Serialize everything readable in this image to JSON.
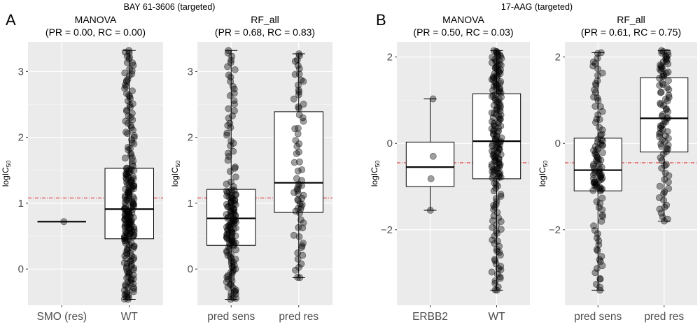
{
  "figure": {
    "groups": [
      {
        "letter": "A",
        "drug_title": "BAY 61-3606 (targeted)"
      },
      {
        "letter": "B",
        "drug_title": "17-AAG (targeted)"
      }
    ]
  },
  "chart_data": [
    {
      "type": "box",
      "panel": "A-left",
      "title": "MANOVA",
      "subtitle": "(PR = 0.00, RC = 0.00)",
      "ylabel": "logIC",
      "ylabel_subscript": "50",
      "categories": [
        "SMO (res)",
        "WT"
      ],
      "ylim": [
        -0.55,
        3.45
      ],
      "yticks": [
        0,
        1,
        2,
        3
      ],
      "threshold": 1.08,
      "boxes": [
        {
          "q1": 0.72,
          "median": 0.72,
          "q3": 0.72,
          "whisker_low": 0.72,
          "whisker_high": 0.72,
          "n": 1,
          "points": [
            0.72
          ]
        },
        {
          "q1": 0.46,
          "median": 0.91,
          "q3": 1.53,
          "whisker_low": -0.46,
          "whisker_high": 3.32,
          "n": 230
        }
      ]
    },
    {
      "type": "box",
      "panel": "A-right",
      "title": "RF_all",
      "subtitle": "(PR = 0.68, RC = 0.83)",
      "ylabel": "logIC",
      "ylabel_subscript": "50",
      "categories": [
        "pred sens",
        "pred res"
      ],
      "ylim": [
        -0.55,
        3.45
      ],
      "yticks": [
        0,
        1,
        2,
        3
      ],
      "threshold": 1.08,
      "boxes": [
        {
          "q1": 0.36,
          "median": 0.77,
          "q3": 1.21,
          "whisker_low": -0.46,
          "whisker_high": 3.32,
          "n": 160
        },
        {
          "q1": 0.86,
          "median": 1.31,
          "q3": 2.39,
          "whisker_low": -0.13,
          "whisker_high": 3.27,
          "n": 70
        }
      ]
    },
    {
      "type": "box",
      "panel": "B-left",
      "title": "MANOVA",
      "subtitle": "(PR = 0.50, RC = 0.03)",
      "ylabel": "logIC",
      "ylabel_subscript": "50",
      "categories": [
        "ERBB2",
        "WT"
      ],
      "ylim": [
        -3.75,
        2.35
      ],
      "yticks": [
        -2,
        0,
        2
      ],
      "threshold": -0.45,
      "boxes": [
        {
          "q1": -1.0,
          "median": -0.55,
          "q3": 0.03,
          "whisker_low": -1.55,
          "whisker_high": 1.03,
          "n": 4,
          "points": [
            1.03,
            -0.3,
            -0.82,
            -1.55
          ]
        },
        {
          "q1": -0.82,
          "median": 0.05,
          "q3": 1.15,
          "whisker_low": -3.4,
          "whisker_high": 2.15,
          "n": 190
        }
      ]
    },
    {
      "type": "box",
      "panel": "B-right",
      "title": "RF_all",
      "subtitle": "(PR = 0.61, RC = 0.75)",
      "ylabel": "logIC",
      "ylabel_subscript": "50",
      "categories": [
        "pred sens",
        "pred res"
      ],
      "ylim": [
        -3.75,
        2.35
      ],
      "yticks": [
        -2,
        0,
        2
      ],
      "threshold": -0.45,
      "boxes": [
        {
          "q1": -1.1,
          "median": -0.62,
          "q3": 0.12,
          "whisker_low": -3.4,
          "whisker_high": 2.1,
          "n": 110
        },
        {
          "q1": -0.2,
          "median": 0.58,
          "q3": 1.52,
          "whisker_low": -1.8,
          "whisker_high": 2.15,
          "n": 90
        }
      ]
    }
  ]
}
